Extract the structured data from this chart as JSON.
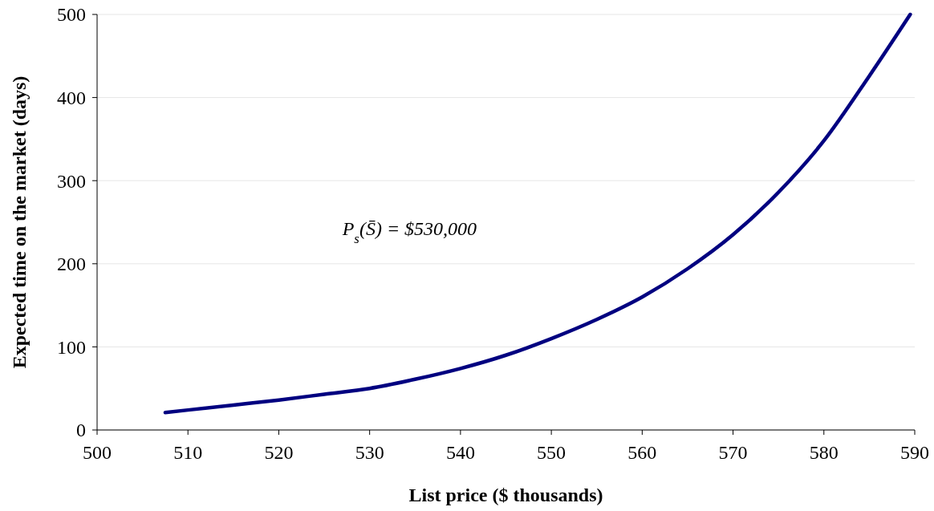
{
  "chart_data": {
    "type": "line",
    "xlabel": "List price ($ thousands)",
    "ylabel": "Expected time on the market (days)",
    "annotations": [
      "P$_{s}$(S̄) = $530,000"
    ],
    "x": [
      507.5,
      510,
      515,
      520,
      525,
      530,
      535,
      540,
      545,
      550,
      555,
      560,
      565,
      570,
      575,
      580,
      585,
      589.5
    ],
    "series": [
      {
        "color": "#000080",
        "values": [
          21,
          24,
          30,
          36,
          43,
          50,
          61,
          74,
          90,
          110,
          133,
          160,
          194,
          235,
          286,
          348,
          426,
          500
        ]
      }
    ],
    "xlim": [
      500,
      590
    ],
    "xticks": [
      500,
      510,
      520,
      530,
      540,
      550,
      560,
      570,
      580,
      590
    ],
    "ylim": [
      0,
      500
    ],
    "yticks": [
      0,
      100,
      200,
      300,
      400,
      500
    ],
    "grid": "y",
    "marker": "none",
    "line_style": "solid"
  }
}
